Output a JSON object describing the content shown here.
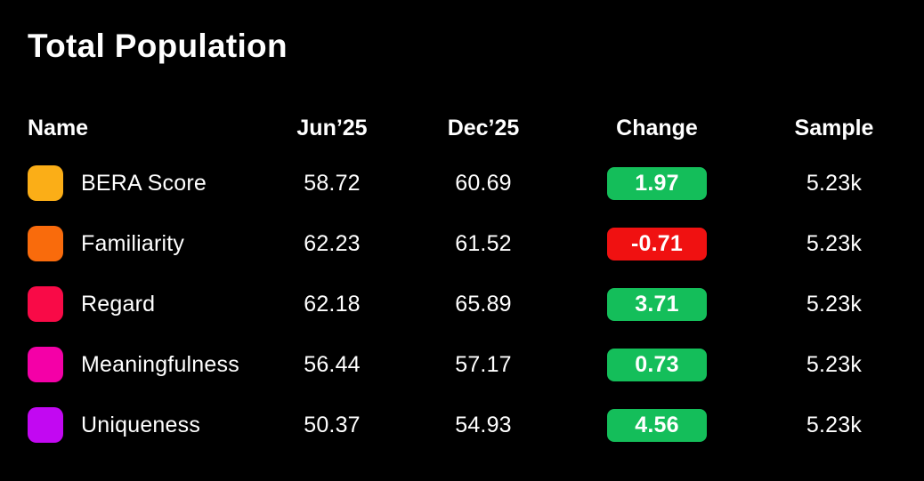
{
  "title": "Total Population",
  "columns": {
    "name": "Name",
    "jun": "Jun’25",
    "dec": "Dec’25",
    "change": "Change",
    "sample": "Sample"
  },
  "rows": [
    {
      "name": "BERA Score",
      "swatch_color": "#FBAE17",
      "jun": "58.72",
      "dec": "60.69",
      "change": "1.97",
      "change_color": "#14BE5A",
      "sample": "5.23k"
    },
    {
      "name": "Familiarity",
      "swatch_color": "#F96B0C",
      "jun": "62.23",
      "dec": "61.52",
      "change": "-0.71",
      "change_color": "#F01111",
      "sample": "5.23k"
    },
    {
      "name": "Regard",
      "swatch_color": "#F90A47",
      "jun": "62.18",
      "dec": "65.89",
      "change": "3.71",
      "change_color": "#14BE5A",
      "sample": "5.23k"
    },
    {
      "name": "Meaningfulness",
      "swatch_color": "#F400A7",
      "jun": "56.44",
      "dec": "57.17",
      "change": "0.73",
      "change_color": "#14BE5A",
      "sample": "5.23k"
    },
    {
      "name": "Uniqueness",
      "swatch_color": "#C208F2",
      "jun": "50.37",
      "dec": "54.93",
      "change": "4.56",
      "change_color": "#14BE5A",
      "sample": "5.23k"
    }
  ],
  "colors": {
    "background": "#000000",
    "text": "#FFFFFF",
    "positive_badge": "#14BE5A",
    "negative_badge": "#F01111"
  },
  "chart_data": {
    "type": "table",
    "title": "Total Population",
    "columns": [
      "Name",
      "Jun’25",
      "Dec’25",
      "Change",
      "Sample"
    ],
    "series": [
      {
        "name": "BERA Score",
        "color": "#FBAE17",
        "jun_25": 58.72,
        "dec_25": 60.69,
        "change": 1.97,
        "sample": "5.23k"
      },
      {
        "name": "Familiarity",
        "color": "#F96B0C",
        "jun_25": 62.23,
        "dec_25": 61.52,
        "change": -0.71,
        "sample": "5.23k"
      },
      {
        "name": "Regard",
        "color": "#F90A47",
        "jun_25": 62.18,
        "dec_25": 65.89,
        "change": 3.71,
        "sample": "5.23k"
      },
      {
        "name": "Meaningfulness",
        "color": "#F400A7",
        "jun_25": 56.44,
        "dec_25": 57.17,
        "change": 0.73,
        "sample": "5.23k"
      },
      {
        "name": "Uniqueness",
        "color": "#C208F2",
        "jun_25": 50.37,
        "dec_25": 54.93,
        "change": 4.56,
        "sample": "5.23k"
      }
    ],
    "notes": "Positive change values shown on green badges, negative on red badges; colored rounded squares are series swatches."
  }
}
